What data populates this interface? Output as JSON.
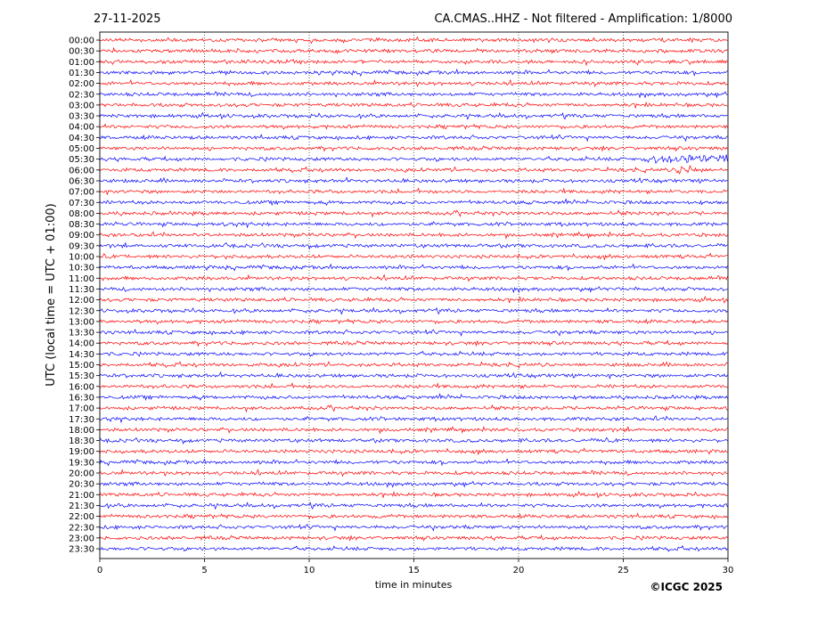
{
  "header": {
    "date": "27-11-2025",
    "station_title": "CA.CMAS..HHZ - Not filtered - Amplification: 1/8000"
  },
  "footer": {
    "copyright": "©ICGC 2025"
  },
  "chart_data": {
    "type": "line",
    "title": "CA.CMAS..HHZ - Not filtered - Amplification: 1/8000",
    "xlabel": "time in minutes",
    "ylabel": "UTC (local time = UTC + 01:00)",
    "xlim": [
      0,
      30
    ],
    "xticks": [
      0,
      5,
      10,
      15,
      20,
      25,
      30
    ],
    "grid": "vertical dotted lines at 5-minute ticks",
    "row_labels": [
      "00:00",
      "00:30",
      "01:00",
      "01:30",
      "02:00",
      "02:30",
      "03:00",
      "03:30",
      "04:00",
      "04:30",
      "05:00",
      "05:30",
      "06:00",
      "06:30",
      "07:00",
      "07:30",
      "08:00",
      "08:30",
      "09:00",
      "09:30",
      "10:00",
      "10:30",
      "11:00",
      "11:30",
      "12:00",
      "12:30",
      "13:00",
      "13:30",
      "14:00",
      "14:30",
      "15:00",
      "15:30",
      "16:00",
      "16:30",
      "17:00",
      "17:30",
      "18:00",
      "18:30",
      "19:00",
      "19:30",
      "20:00",
      "20:30",
      "21:00",
      "21:30",
      "22:00",
      "22:30",
      "23:00",
      "23:30"
    ],
    "trace_colors": [
      "#ff0000",
      "#ff0000",
      "#ff0000",
      "#0000ff",
      "#ff0000",
      "#0000ff",
      "#ff0000",
      "#0000ff",
      "#ff0000",
      "#0000ff",
      "#ff0000",
      "#0000ff",
      "#ff0000",
      "#0000ff",
      "#ff0000",
      "#0000ff",
      "#ff0000",
      "#0000ff",
      "#ff0000",
      "#0000ff",
      "#ff0000",
      "#0000ff",
      "#ff0000",
      "#0000ff",
      "#ff0000",
      "#0000ff",
      "#ff0000",
      "#0000ff",
      "#ff0000",
      "#0000ff",
      "#ff0000",
      "#0000ff",
      "#ff0000",
      "#0000ff",
      "#ff0000",
      "#0000ff",
      "#ff0000",
      "#0000ff",
      "#ff0000",
      "#0000ff",
      "#ff0000",
      "#0000ff",
      "#ff0000",
      "#0000ff",
      "#ff0000",
      "#0000ff",
      "#ff0000",
      "#0000ff"
    ],
    "events": [
      {
        "row": "05:30",
        "minute_start": 26,
        "minute_end": 30,
        "description": "larger low-frequency wiggles"
      },
      {
        "row": "06:00",
        "minute_start": 27.5,
        "minute_end": 28.8,
        "description": "burst"
      }
    ]
  }
}
